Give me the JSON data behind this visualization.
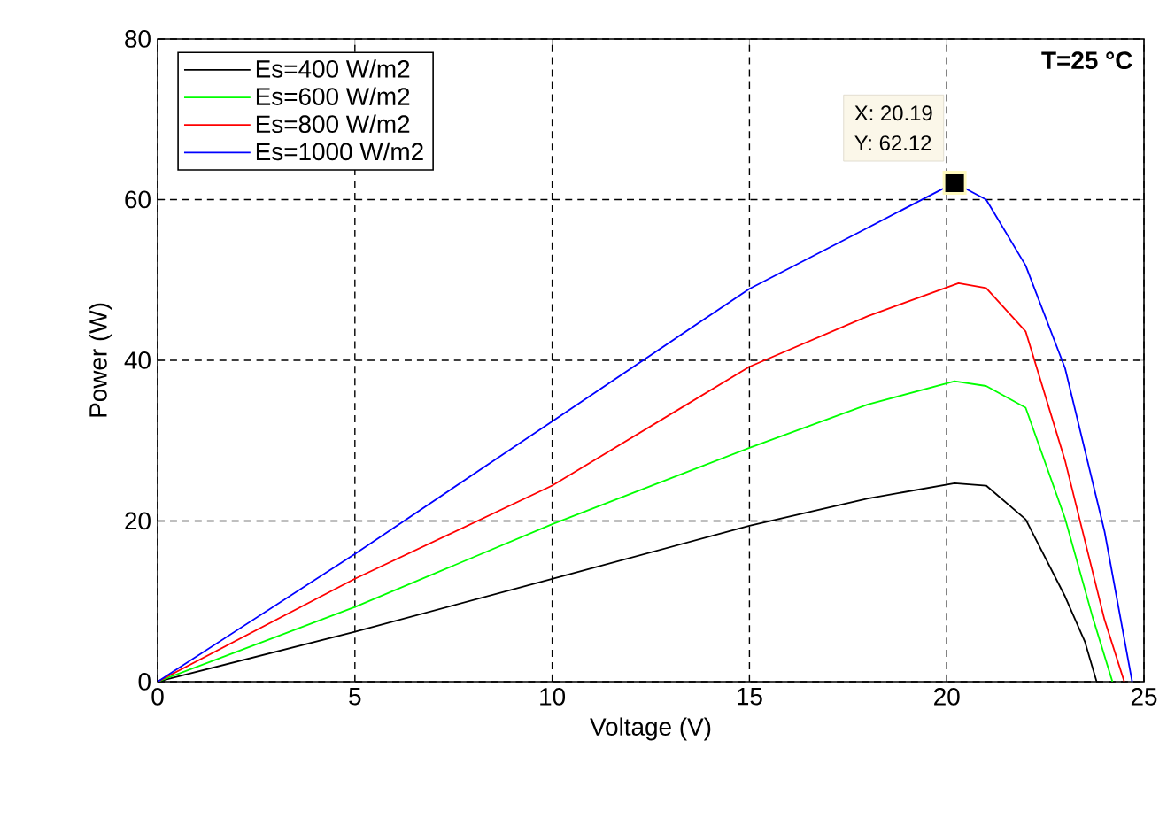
{
  "chart_data": {
    "type": "line",
    "xlabel": "Voltage (V)",
    "ylabel": "Power (W)",
    "xlim": [
      0,
      25
    ],
    "ylim": [
      0,
      80
    ],
    "xticks": [
      0,
      5,
      10,
      15,
      20,
      25
    ],
    "yticks": [
      0,
      20,
      40,
      60,
      80
    ],
    "grid": true,
    "legend": "top left",
    "line_style": "solid",
    "marker": "none",
    "series": [
      {
        "name": "Es=400  W/m2",
        "color": "#000000",
        "x": [
          0,
          5,
          10,
          15,
          18,
          20.2,
          21,
          22,
          23,
          23.5,
          23.8
        ],
        "values": [
          0,
          6.2,
          12.8,
          19.4,
          22.8,
          24.7,
          24.4,
          20.2,
          10.6,
          5,
          0
        ]
      },
      {
        "name": "Es=600  W/m2",
        "color": "#00ff00",
        "x": [
          0,
          5,
          10,
          15,
          18,
          20.2,
          21,
          22,
          23,
          23.7,
          24.2
        ],
        "values": [
          0,
          9.3,
          19.6,
          29.1,
          34.5,
          37.4,
          36.8,
          34.1,
          20.3,
          8,
          0
        ]
      },
      {
        "name": "Es=800  W/m2",
        "color": "#ff0000",
        "x": [
          0,
          5,
          10,
          15,
          18,
          20.3,
          21,
          22,
          23,
          24,
          24.5
        ],
        "values": [
          0,
          12.8,
          24.4,
          39.2,
          45.5,
          49.6,
          49,
          43.6,
          27.5,
          7.7,
          0
        ]
      },
      {
        "name": "Es=1000  W/m2",
        "color": "#0000ff",
        "x": [
          0,
          5,
          10,
          15,
          18,
          20.2,
          21,
          22,
          23,
          24,
          24.7
        ],
        "values": [
          0,
          15.9,
          32.4,
          48.9,
          56.5,
          62.1,
          60,
          51.8,
          39,
          18.7,
          0
        ]
      }
    ],
    "annotations": [
      "X: 20.19",
      "Y: 62.12",
      "T=25 °C"
    ]
  }
}
